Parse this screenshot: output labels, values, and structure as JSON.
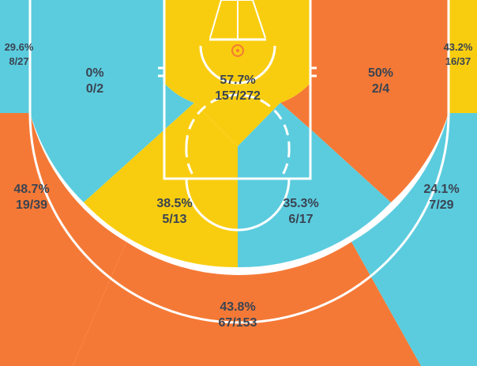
{
  "colors": {
    "hot": "#f57936",
    "neutral": "#f9cd0f",
    "cold": "#5bccde",
    "line": "#ffffff",
    "text": "#3a4452",
    "hoop": "#f57936"
  },
  "chart_data": {
    "type": "shot-chart",
    "title": "",
    "zones": [
      {
        "id": "left-corner-3",
        "pct": "29.6%",
        "made_att": "8/27",
        "made": 8,
        "attempts": 27,
        "color": "cold"
      },
      {
        "id": "left-baseline-mid",
        "pct": "0%",
        "made_att": "0/2",
        "made": 0,
        "attempts": 2,
        "color": "cold"
      },
      {
        "id": "restricted-area",
        "pct": "57.7%",
        "made_att": "157/272",
        "made": 157,
        "attempts": 272,
        "color": "neutral"
      },
      {
        "id": "right-baseline-mid",
        "pct": "50%",
        "made_att": "2/4",
        "made": 2,
        "attempts": 4,
        "color": "hot"
      },
      {
        "id": "right-corner-3",
        "pct": "43.2%",
        "made_att": "16/37",
        "made": 16,
        "attempts": 37,
        "color": "neutral"
      },
      {
        "id": "left-wing-3",
        "pct": "48.7%",
        "made_att": "19/39",
        "made": 19,
        "attempts": 39,
        "color": "hot"
      },
      {
        "id": "left-elbow-mid",
        "pct": "38.5%",
        "made_att": "5/13",
        "made": 5,
        "attempts": 13,
        "color": "neutral"
      },
      {
        "id": "right-elbow-mid",
        "pct": "35.3%",
        "made_att": "6/17",
        "made": 6,
        "attempts": 17,
        "color": "cold"
      },
      {
        "id": "right-wing-3",
        "pct": "24.1%",
        "made_att": "7/29",
        "made": 7,
        "attempts": 29,
        "color": "cold"
      },
      {
        "id": "top-of-key-3",
        "pct": "43.8%",
        "made_att": "67/153",
        "made": 67,
        "attempts": 153,
        "color": "hot"
      }
    ]
  }
}
